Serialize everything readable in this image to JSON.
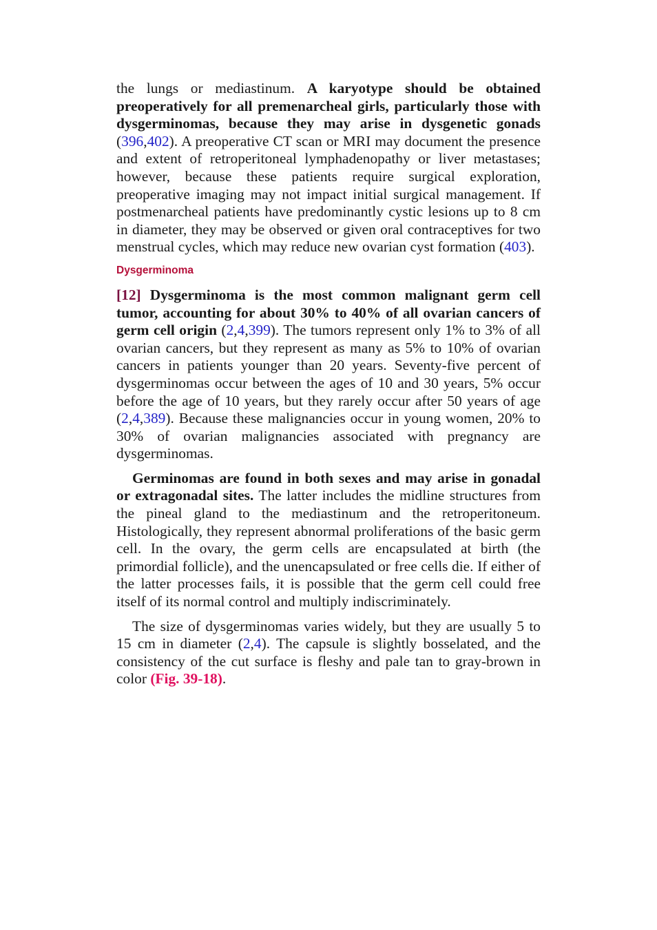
{
  "p1": {
    "t1": "the lungs or mediastinum. ",
    "b1": "A karyotype should be obtained preoperatively for all premenarcheal girls, particularly those with dysgerminomas, because they may arise in dysgenetic gonads",
    "t2": " (",
    "r1": "396",
    "c1": ",",
    "r2": "402",
    "t3": "). A preoperative CT scan or MRI may document the presence and extent of retroperitoneal lymphadenopathy or liver metastases; however, because these patients require surgical exploration, preoperative imaging may not impact initial surgical management. If postmenarcheal patients have predominantly cystic lesions up to 8 cm in diameter, they may be observed or given oral contraceptives for two menstrual cycles, which may reduce new ovarian cyst formation (",
    "r3": "403",
    "t4": ")."
  },
  "heading": "Dysgerminoma",
  "p2": {
    "num": "[12]",
    "b1": " Dysgerminoma is the most common malignant germ cell tumor, accounting for about 30% to 40% of all ovarian cancers of germ cell origin",
    "t1": " (",
    "r1": "2",
    "c1": ",",
    "r2": "4",
    "c2": ",",
    "r3": "399",
    "t2": "). The tumors represent only 1% to 3% of all ovarian cancers, but they represent as many as 5% to 10% of ovarian cancers in patients younger than 20 years. Seventy-five percent of dysgerminomas occur between the ages of 10 and 30 years, 5% occur before the age of 10 years, but they rarely occur after 50 years of age (",
    "r4": "2",
    "c3": ",",
    "r5": "4",
    "c4": ",",
    "r6": "389",
    "t3": "). Because these malignancies occur in young women, 20% to 30% of ovarian malignancies associated with pregnancy are dysgerminomas."
  },
  "p3": {
    "b1": "Germinomas are found in both sexes and may arise in gonadal or extragonadal sites.",
    "t1": " The latter includes the midline structures from the pineal gland to the mediastinum and the retroperitoneum. Histologically, they represent abnormal proliferations of the basic germ cell. In the ovary, the germ cells are encapsulated at birth (the primordial follicle), and the unencapsulated or free cells die. If either of the latter processes fails, it is possible that the germ cell could free itself of its normal control and multiply indiscriminately."
  },
  "p4": {
    "t1": "The size of dysgerminomas varies widely, but they are usually 5 to 15 cm in diameter (",
    "r1": "2",
    "c1": ",",
    "r2": "4",
    "t2": "). The capsule is slightly bosselated, and the consistency of the cut surface is fleshy and pale tan to gray-brown in color ",
    "fig": "(Fig. 39-18)",
    "t3": "."
  },
  "colors": {
    "text": "#1a1a1a",
    "reference_link": "#2424c8",
    "heading": "#b5103a",
    "figure_link": "#e0115f",
    "paragraph_number": "#7a1040"
  }
}
